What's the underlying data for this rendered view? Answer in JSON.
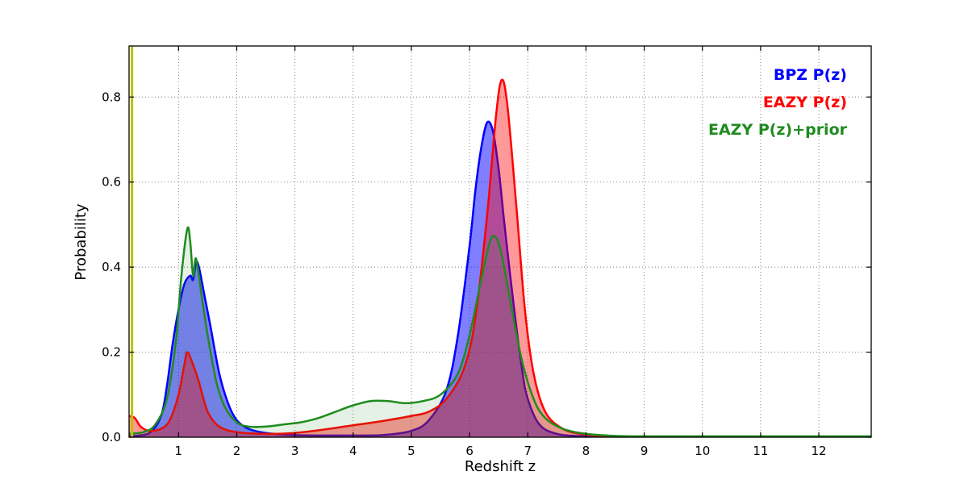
{
  "figure": {
    "background": "#ffffff"
  },
  "chart_data": {
    "type": "line",
    "title": "",
    "xlabel": "Redshift z",
    "ylabel": "Probability",
    "xlim": [
      0.15,
      12.9
    ],
    "ylim": [
      0,
      0.92
    ],
    "xticks": [
      1,
      2,
      3,
      4,
      5,
      6,
      7,
      8,
      9,
      10,
      11,
      12
    ],
    "xtick_labels": [
      "1",
      "2",
      "3",
      "4",
      "5",
      "6",
      "7",
      "8",
      "9",
      "10",
      "11",
      "12"
    ],
    "yticks": [
      0.0,
      0.2,
      0.4,
      0.6,
      0.8
    ],
    "ytick_labels": [
      "0.0",
      "0.2",
      "0.4",
      "0.6",
      "0.8"
    ],
    "grid": true,
    "grid_style": "dotted",
    "legend_position": "top-right",
    "series": [
      {
        "name": "BPZ P(z)",
        "color": "#0000ff",
        "fill_opacity": 0.5,
        "line_width": 2.5,
        "points": [
          [
            0.15,
            0.002
          ],
          [
            0.5,
            0.01
          ],
          [
            0.7,
            0.05
          ],
          [
            0.8,
            0.12
          ],
          [
            0.9,
            0.22
          ],
          [
            1.0,
            0.3
          ],
          [
            1.1,
            0.36
          ],
          [
            1.2,
            0.38
          ],
          [
            1.25,
            0.37
          ],
          [
            1.3,
            0.41
          ],
          [
            1.35,
            0.4
          ],
          [
            1.45,
            0.33
          ],
          [
            1.55,
            0.26
          ],
          [
            1.7,
            0.15
          ],
          [
            1.85,
            0.08
          ],
          [
            2.0,
            0.04
          ],
          [
            2.2,
            0.02
          ],
          [
            2.5,
            0.01
          ],
          [
            3.0,
            0.005
          ],
          [
            3.5,
            0.004
          ],
          [
            4.0,
            0.004
          ],
          [
            4.5,
            0.005
          ],
          [
            5.0,
            0.015
          ],
          [
            5.3,
            0.04
          ],
          [
            5.6,
            0.11
          ],
          [
            5.8,
            0.24
          ],
          [
            6.0,
            0.45
          ],
          [
            6.1,
            0.58
          ],
          [
            6.2,
            0.68
          ],
          [
            6.3,
            0.74
          ],
          [
            6.4,
            0.72
          ],
          [
            6.5,
            0.63
          ],
          [
            6.6,
            0.5
          ],
          [
            6.75,
            0.32
          ],
          [
            6.9,
            0.16
          ],
          [
            7.0,
            0.09
          ],
          [
            7.2,
            0.03
          ],
          [
            7.5,
            0.008
          ],
          [
            8.0,
            0.002
          ],
          [
            9.0,
            0.001
          ],
          [
            10.0,
            0.001
          ],
          [
            11.0,
            0.001
          ],
          [
            12.9,
            0.001
          ]
        ]
      },
      {
        "name": "EAZY P(z)",
        "color": "#ff0000",
        "fill_opacity": 0.4,
        "line_width": 2.5,
        "points": [
          [
            0.15,
            0.05
          ],
          [
            0.25,
            0.045
          ],
          [
            0.35,
            0.025
          ],
          [
            0.5,
            0.015
          ],
          [
            0.7,
            0.02
          ],
          [
            0.85,
            0.04
          ],
          [
            1.0,
            0.1
          ],
          [
            1.1,
            0.17
          ],
          [
            1.15,
            0.2
          ],
          [
            1.25,
            0.17
          ],
          [
            1.35,
            0.13
          ],
          [
            1.5,
            0.06
          ],
          [
            1.7,
            0.025
          ],
          [
            2.0,
            0.012
          ],
          [
            2.5,
            0.008
          ],
          [
            3.0,
            0.01
          ],
          [
            3.5,
            0.018
          ],
          [
            4.0,
            0.028
          ],
          [
            4.5,
            0.038
          ],
          [
            5.0,
            0.05
          ],
          [
            5.3,
            0.06
          ],
          [
            5.6,
            0.09
          ],
          [
            5.9,
            0.16
          ],
          [
            6.1,
            0.28
          ],
          [
            6.3,
            0.52
          ],
          [
            6.45,
            0.75
          ],
          [
            6.55,
            0.84
          ],
          [
            6.65,
            0.78
          ],
          [
            6.8,
            0.55
          ],
          [
            6.95,
            0.3
          ],
          [
            7.1,
            0.15
          ],
          [
            7.3,
            0.06
          ],
          [
            7.6,
            0.02
          ],
          [
            8.0,
            0.006
          ],
          [
            8.5,
            0.002
          ],
          [
            9.0,
            0.001
          ],
          [
            10.0,
            0.001
          ],
          [
            11.0,
            0.001
          ],
          [
            12.9,
            0.001
          ]
        ]
      },
      {
        "name": "EAZY P(z)+prior",
        "color": "#1f8b1f",
        "fill_opacity": 0.12,
        "line_width": 2.5,
        "points": [
          [
            0.15,
            0.008
          ],
          [
            0.4,
            0.012
          ],
          [
            0.6,
            0.03
          ],
          [
            0.8,
            0.09
          ],
          [
            0.95,
            0.22
          ],
          [
            1.05,
            0.38
          ],
          [
            1.15,
            0.49
          ],
          [
            1.2,
            0.46
          ],
          [
            1.25,
            0.38
          ],
          [
            1.3,
            0.42
          ],
          [
            1.4,
            0.33
          ],
          [
            1.5,
            0.24
          ],
          [
            1.65,
            0.13
          ],
          [
            1.8,
            0.07
          ],
          [
            2.0,
            0.035
          ],
          [
            2.2,
            0.025
          ],
          [
            2.5,
            0.025
          ],
          [
            2.8,
            0.03
          ],
          [
            3.1,
            0.035
          ],
          [
            3.4,
            0.045
          ],
          [
            3.7,
            0.06
          ],
          [
            4.0,
            0.075
          ],
          [
            4.3,
            0.085
          ],
          [
            4.6,
            0.085
          ],
          [
            4.9,
            0.08
          ],
          [
            5.2,
            0.085
          ],
          [
            5.5,
            0.1
          ],
          [
            5.8,
            0.15
          ],
          [
            6.0,
            0.24
          ],
          [
            6.2,
            0.37
          ],
          [
            6.35,
            0.46
          ],
          [
            6.45,
            0.47
          ],
          [
            6.55,
            0.43
          ],
          [
            6.7,
            0.32
          ],
          [
            6.9,
            0.18
          ],
          [
            7.1,
            0.09
          ],
          [
            7.3,
            0.045
          ],
          [
            7.6,
            0.02
          ],
          [
            8.0,
            0.008
          ],
          [
            8.5,
            0.003
          ],
          [
            9.0,
            0.002
          ],
          [
            10.0,
            0.002
          ],
          [
            11.0,
            0.002
          ],
          [
            12.9,
            0.002
          ]
        ]
      }
    ],
    "markers": [
      {
        "type": "vline",
        "x": 0.2,
        "color": "#bfbf00",
        "width": 3
      }
    ]
  },
  "legend": {
    "items": [
      {
        "label": "BPZ P(z)",
        "color": "#0000ff"
      },
      {
        "label": "EAZY P(z)",
        "color": "#ff0000"
      },
      {
        "label": "EAZY P(z)+prior",
        "color": "#1f8b1f"
      }
    ]
  }
}
